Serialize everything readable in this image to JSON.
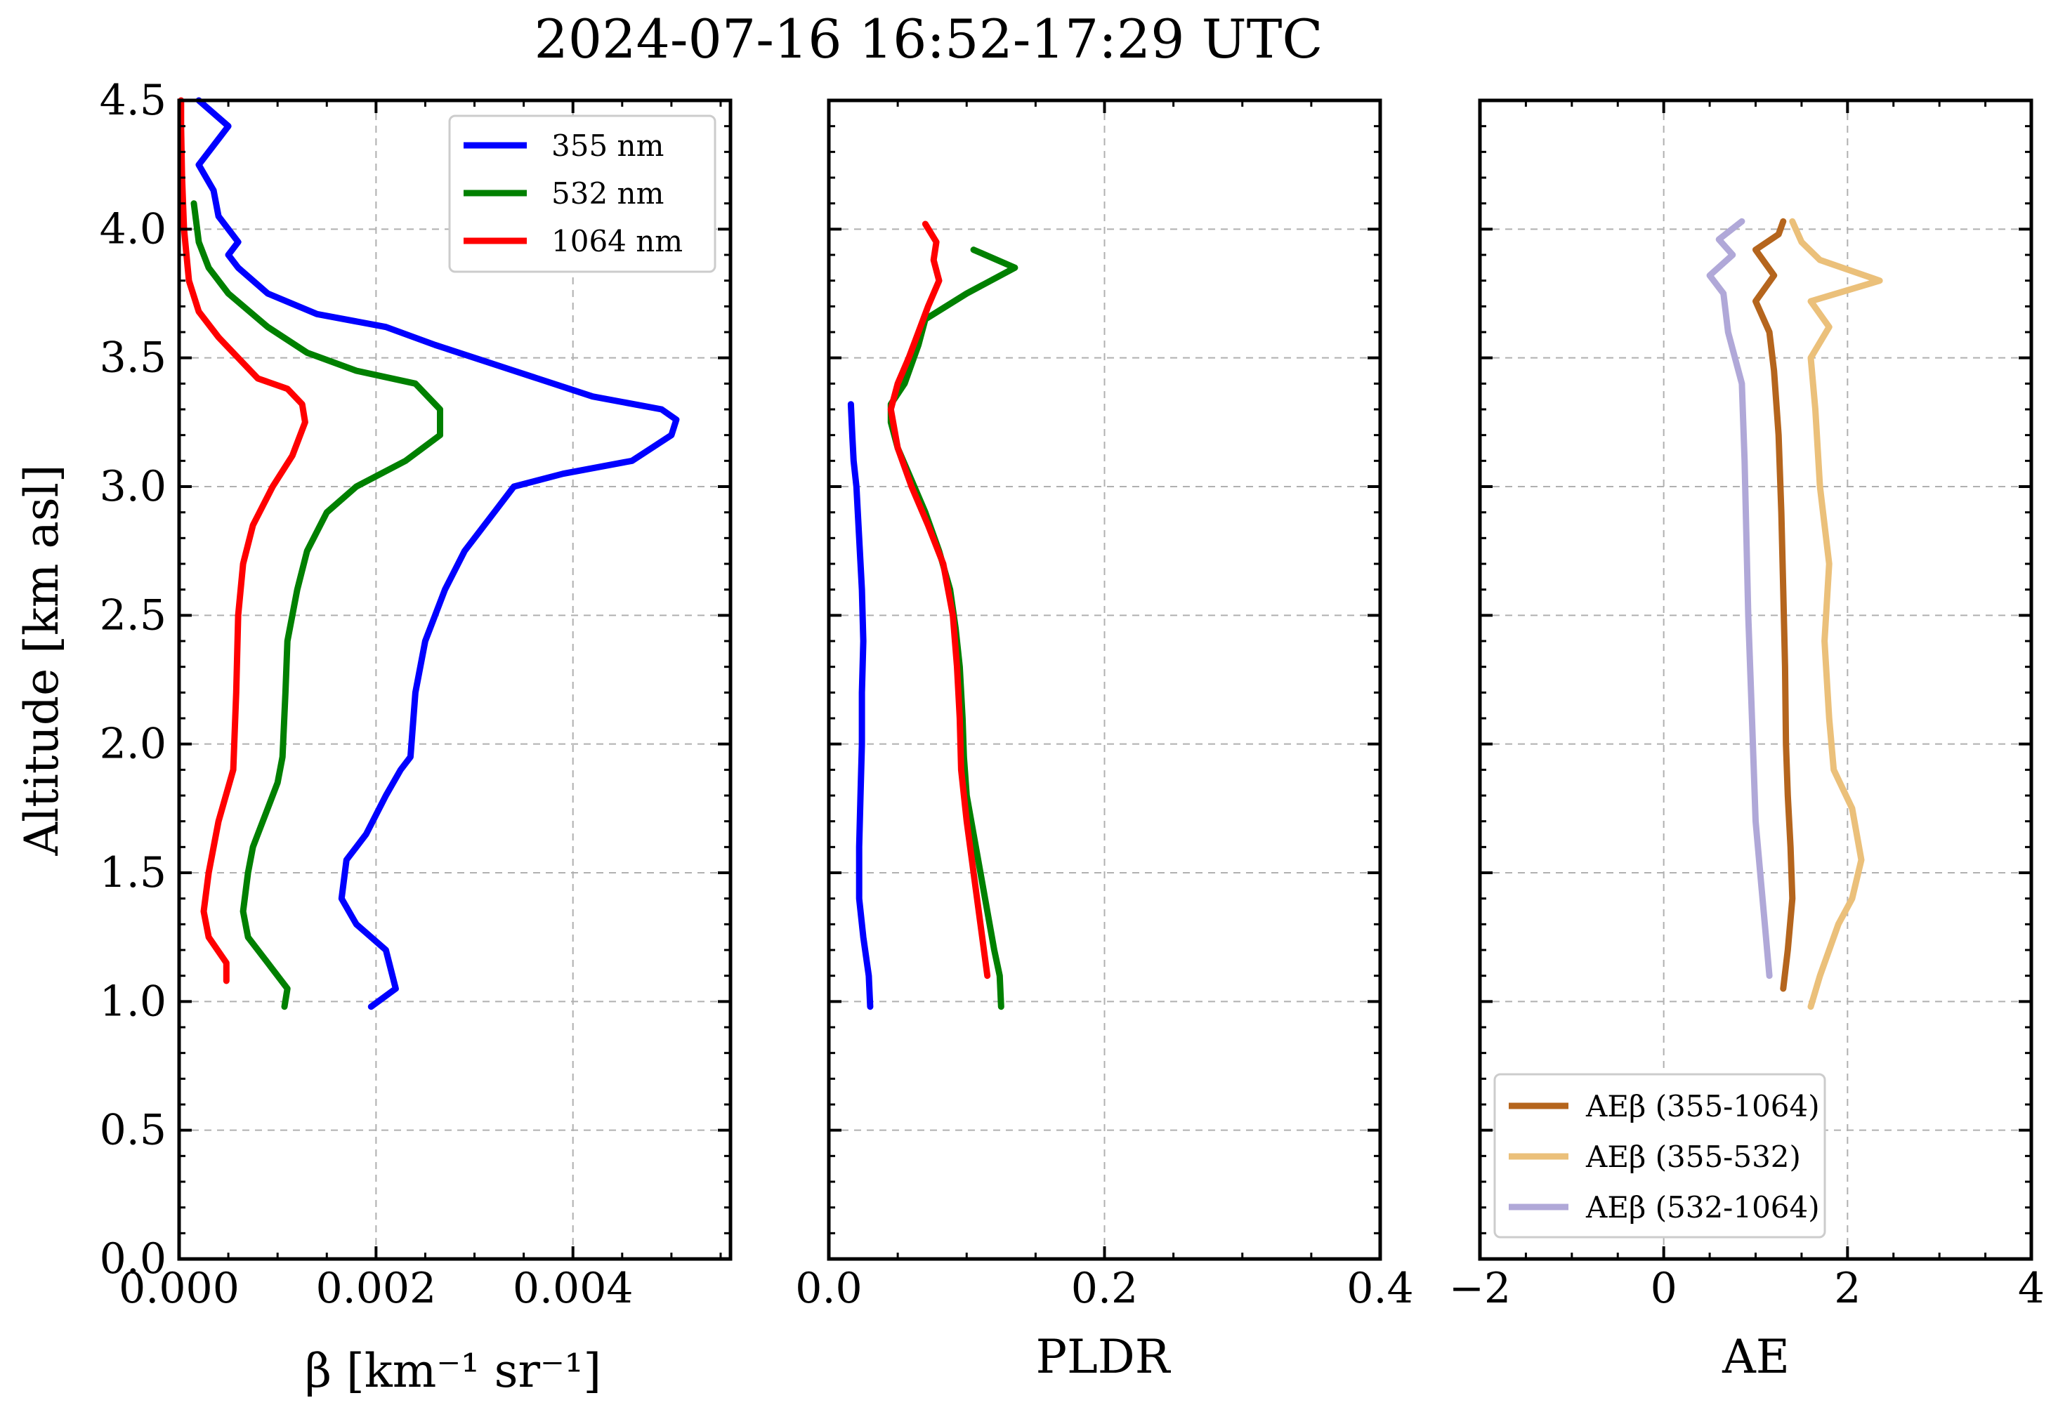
{
  "chart_data": {
    "title": "2024-07-16 16:52-17:29 UTC",
    "ylabel": "Altitude [km asl]",
    "ylim": [
      0,
      4.5
    ],
    "yticks": [
      "0.0",
      "0.5",
      "1.0",
      "1.5",
      "2.0",
      "2.5",
      "3.0",
      "3.5",
      "4.0",
      "4.5"
    ],
    "panels": [
      {
        "type": "line",
        "name": "backscatter",
        "xlabel": "β [km⁻¹ sr⁻¹]",
        "xlim": [
          0,
          0.0056
        ],
        "xticks": [
          "0.000",
          "0.002",
          "0.004"
        ],
        "xtick_values": [
          0,
          0.002,
          0.004
        ],
        "legend": "upper right",
        "series": [
          {
            "name": "355 nm",
            "color": "#0000ff",
            "points": [
              [
                0.00195,
                0.98
              ],
              [
                0.0022,
                1.05
              ],
              [
                0.0021,
                1.2
              ],
              [
                0.0018,
                1.3
              ],
              [
                0.00165,
                1.4
              ],
              [
                0.0017,
                1.55
              ],
              [
                0.0019,
                1.65
              ],
              [
                0.0021,
                1.8
              ],
              [
                0.00225,
                1.9
              ],
              [
                0.00235,
                1.95
              ],
              [
                0.0024,
                2.2
              ],
              [
                0.0025,
                2.4
              ],
              [
                0.0026,
                2.5
              ],
              [
                0.0027,
                2.6
              ],
              [
                0.0029,
                2.75
              ],
              [
                0.0032,
                2.9
              ],
              [
                0.0034,
                3.0
              ],
              [
                0.0039,
                3.05
              ],
              [
                0.0046,
                3.1
              ],
              [
                0.005,
                3.2
              ],
              [
                0.00505,
                3.26
              ],
              [
                0.0049,
                3.3
              ],
              [
                0.0042,
                3.35
              ],
              [
                0.0034,
                3.45
              ],
              [
                0.0026,
                3.55
              ],
              [
                0.0021,
                3.62
              ],
              [
                0.0014,
                3.67
              ],
              [
                0.0009,
                3.75
              ],
              [
                0.0006,
                3.85
              ],
              [
                0.0005,
                3.9
              ],
              [
                0.0006,
                3.95
              ],
              [
                0.0004,
                4.05
              ],
              [
                0.00035,
                4.15
              ],
              [
                0.0002,
                4.25
              ],
              [
                0.0004,
                4.35
              ],
              [
                0.0005,
                4.4
              ],
              [
                0.0002,
                4.5
              ]
            ]
          },
          {
            "name": "532 nm",
            "color": "#008000",
            "points": [
              [
                0.00107,
                0.98
              ],
              [
                0.0011,
                1.05
              ],
              [
                0.0009,
                1.15
              ],
              [
                0.0007,
                1.25
              ],
              [
                0.00065,
                1.35
              ],
              [
                0.0007,
                1.5
              ],
              [
                0.00075,
                1.6
              ],
              [
                0.0009,
                1.75
              ],
              [
                0.001,
                1.85
              ],
              [
                0.00105,
                1.95
              ],
              [
                0.00108,
                2.2
              ],
              [
                0.0011,
                2.4
              ],
              [
                0.0012,
                2.6
              ],
              [
                0.0013,
                2.75
              ],
              [
                0.0015,
                2.9
              ],
              [
                0.0018,
                3.0
              ],
              [
                0.0023,
                3.1
              ],
              [
                0.00265,
                3.2
              ],
              [
                0.00265,
                3.3
              ],
              [
                0.0024,
                3.4
              ],
              [
                0.0018,
                3.45
              ],
              [
                0.0013,
                3.52
              ],
              [
                0.0009,
                3.62
              ],
              [
                0.0005,
                3.75
              ],
              [
                0.0003,
                3.85
              ],
              [
                0.0002,
                3.95
              ],
              [
                0.00015,
                4.1
              ]
            ]
          },
          {
            "name": "1064 nm",
            "color": "#ff0000",
            "points": [
              [
                0.00048,
                1.08
              ],
              [
                0.00048,
                1.15
              ],
              [
                0.0003,
                1.25
              ],
              [
                0.00025,
                1.35
              ],
              [
                0.0003,
                1.5
              ],
              [
                0.0004,
                1.7
              ],
              [
                0.00055,
                1.9
              ],
              [
                0.00058,
                2.2
              ],
              [
                0.0006,
                2.5
              ],
              [
                0.00065,
                2.7
              ],
              [
                0.00075,
                2.85
              ],
              [
                0.00095,
                3.0
              ],
              [
                0.00115,
                3.12
              ],
              [
                0.00128,
                3.25
              ],
              [
                0.00125,
                3.32
              ],
              [
                0.0011,
                3.38
              ],
              [
                0.0008,
                3.42
              ],
              [
                0.0006,
                3.5
              ],
              [
                0.0004,
                3.58
              ],
              [
                0.0002,
                3.68
              ],
              [
                0.0001,
                3.8
              ],
              [
                5e-05,
                4.0
              ],
              [
                3e-05,
                4.2
              ],
              [
                2e-05,
                4.4
              ],
              [
                2e-05,
                4.5
              ]
            ]
          }
        ]
      },
      {
        "type": "line",
        "name": "pldr",
        "xlabel": "PLDR",
        "xlim": [
          0,
          0.4
        ],
        "xticks": [
          "0.0",
          "0.2",
          "0.4"
        ],
        "xtick_values": [
          0,
          0.2,
          0.4
        ],
        "series": [
          {
            "name": "355 nm",
            "color": "#0000ff",
            "points": [
              [
                0.03,
                0.98
              ],
              [
                0.029,
                1.1
              ],
              [
                0.025,
                1.25
              ],
              [
                0.022,
                1.4
              ],
              [
                0.022,
                1.6
              ],
              [
                0.023,
                1.8
              ],
              [
                0.024,
                2.0
              ],
              [
                0.024,
                2.2
              ],
              [
                0.025,
                2.4
              ],
              [
                0.024,
                2.6
              ],
              [
                0.022,
                2.8
              ],
              [
                0.02,
                3.0
              ],
              [
                0.018,
                3.1
              ],
              [
                0.017,
                3.2
              ],
              [
                0.016,
                3.32
              ]
            ]
          },
          {
            "name": "532 nm",
            "color": "#008000",
            "points": [
              [
                0.125,
                0.98
              ],
              [
                0.124,
                1.1
              ],
              [
                0.12,
                1.2
              ],
              [
                0.115,
                1.35
              ],
              [
                0.11,
                1.5
              ],
              [
                0.105,
                1.65
              ],
              [
                0.1,
                1.8
              ],
              [
                0.098,
                1.95
              ],
              [
                0.097,
                2.1
              ],
              [
                0.095,
                2.3
              ],
              [
                0.092,
                2.45
              ],
              [
                0.088,
                2.6
              ],
              [
                0.08,
                2.75
              ],
              [
                0.07,
                2.9
              ],
              [
                0.058,
                3.05
              ],
              [
                0.05,
                3.15
              ],
              [
                0.045,
                3.25
              ],
              [
                0.045,
                3.32
              ],
              [
                0.055,
                3.4
              ],
              [
                0.065,
                3.55
              ],
              [
                0.07,
                3.65
              ],
              [
                0.1,
                3.75
              ],
              [
                0.135,
                3.85
              ],
              [
                0.105,
                3.92
              ]
            ]
          },
          {
            "name": "1064 nm",
            "color": "#ff0000",
            "points": [
              [
                0.115,
                1.1
              ],
              [
                0.11,
                1.3
              ],
              [
                0.105,
                1.5
              ],
              [
                0.1,
                1.7
              ],
              [
                0.096,
                1.9
              ],
              [
                0.095,
                2.1
              ],
              [
                0.093,
                2.3
              ],
              [
                0.09,
                2.5
              ],
              [
                0.083,
                2.7
              ],
              [
                0.072,
                2.85
              ],
              [
                0.06,
                3.0
              ],
              [
                0.05,
                3.15
              ],
              [
                0.045,
                3.3
              ],
              [
                0.05,
                3.4
              ],
              [
                0.058,
                3.5
              ],
              [
                0.065,
                3.6
              ],
              [
                0.072,
                3.7
              ],
              [
                0.08,
                3.8
              ],
              [
                0.076,
                3.88
              ],
              [
                0.078,
                3.95
              ],
              [
                0.07,
                4.02
              ]
            ]
          }
        ]
      },
      {
        "type": "line",
        "name": "angstrom",
        "xlabel": "AE",
        "xlim": [
          -2,
          4
        ],
        "xticks": [
          "−2",
          "0",
          "2",
          "4"
        ],
        "xtick_values": [
          -2,
          0,
          2,
          4
        ],
        "legend": "lower right",
        "series": [
          {
            "name": "AEβ (355-1064)",
            "color": "#b5651d",
            "points": [
              [
                1.3,
                1.05
              ],
              [
                1.35,
                1.2
              ],
              [
                1.4,
                1.4
              ],
              [
                1.38,
                1.6
              ],
              [
                1.35,
                1.8
              ],
              [
                1.33,
                2.0
              ],
              [
                1.32,
                2.3
              ],
              [
                1.3,
                2.6
              ],
              [
                1.28,
                2.9
              ],
              [
                1.25,
                3.2
              ],
              [
                1.2,
                3.45
              ],
              [
                1.15,
                3.6
              ],
              [
                1.0,
                3.72
              ],
              [
                1.2,
                3.82
              ],
              [
                1.0,
                3.92
              ],
              [
                1.25,
                3.98
              ],
              [
                1.3,
                4.03
              ]
            ]
          },
          {
            "name": "AEβ (355-532)",
            "color": "#ebc07a",
            "points": [
              [
                1.6,
                0.98
              ],
              [
                1.7,
                1.1
              ],
              [
                1.9,
                1.3
              ],
              [
                2.05,
                1.4
              ],
              [
                2.15,
                1.55
              ],
              [
                2.05,
                1.75
              ],
              [
                1.85,
                1.9
              ],
              [
                1.8,
                2.1
              ],
              [
                1.75,
                2.4
              ],
              [
                1.8,
                2.7
              ],
              [
                1.7,
                3.0
              ],
              [
                1.65,
                3.3
              ],
              [
                1.6,
                3.5
              ],
              [
                1.8,
                3.62
              ],
              [
                1.6,
                3.72
              ],
              [
                2.35,
                3.8
              ],
              [
                1.7,
                3.88
              ],
              [
                1.5,
                3.95
              ],
              [
                1.4,
                4.03
              ]
            ]
          },
          {
            "name": "AEβ (532-1064)",
            "color": "#b0a8d8",
            "points": [
              [
                1.15,
                1.1
              ],
              [
                1.1,
                1.3
              ],
              [
                1.05,
                1.5
              ],
              [
                1.0,
                1.7
              ],
              [
                0.98,
                1.9
              ],
              [
                0.95,
                2.2
              ],
              [
                0.92,
                2.5
              ],
              [
                0.9,
                2.8
              ],
              [
                0.88,
                3.1
              ],
              [
                0.85,
                3.4
              ],
              [
                0.7,
                3.6
              ],
              [
                0.65,
                3.75
              ],
              [
                0.5,
                3.82
              ],
              [
                0.75,
                3.9
              ],
              [
                0.6,
                3.96
              ],
              [
                0.85,
                4.03
              ]
            ]
          }
        ]
      }
    ]
  }
}
